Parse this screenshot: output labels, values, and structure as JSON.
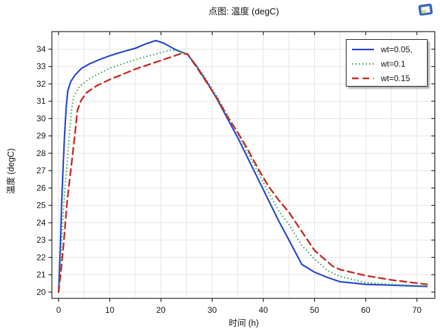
{
  "header": {
    "title": "点图: 温度 (degC)",
    "corner_icon": "plot-window-icon"
  },
  "chart_data": {
    "type": "line",
    "title": "点图: 温度 (degC)",
    "xlabel": "时间 (h)",
    "ylabel": "温度 (degC)",
    "xlim": [
      -1.3,
      73.5
    ],
    "ylim": [
      19.64,
      35.01
    ],
    "xticks": [
      0,
      10,
      20,
      30,
      40,
      50,
      60,
      70
    ],
    "yticks": [
      20,
      21,
      22,
      23,
      24,
      25,
      26,
      27,
      28,
      29,
      30,
      31,
      32,
      33,
      34
    ],
    "x_grid_step": 5,
    "grid": true,
    "grid_color": "#e4e4e4",
    "frame_color": "#222222",
    "legend": {
      "position": "top-right",
      "border": true
    },
    "series": [
      {
        "name": "wt=0.05,",
        "color": "#2346cc",
        "line_style": "solid",
        "line_width": 2.2,
        "x": [
          0,
          0.3,
          0.6,
          0.9,
          1.2,
          1.5,
          1.8,
          2.4,
          3.2,
          4.5,
          6,
          8,
          10,
          12.5,
          15,
          17,
          19,
          20.5,
          23,
          25.2,
          27,
          29,
          31,
          33,
          35,
          37,
          39,
          41,
          43,
          45,
          47.5,
          50,
          52.5,
          55,
          60,
          65,
          70,
          72
        ],
        "y": [
          20,
          22.2,
          25.0,
          27.3,
          29.2,
          30.7,
          31.6,
          32.15,
          32.5,
          32.9,
          33.15,
          33.4,
          33.62,
          33.85,
          34.05,
          34.3,
          34.5,
          34.35,
          33.95,
          33.7,
          33.0,
          32.1,
          31.1,
          30.0,
          28.9,
          27.7,
          26.5,
          25.3,
          24.1,
          23.0,
          21.6,
          21.15,
          20.85,
          20.6,
          20.45,
          20.4,
          20.35,
          20.33
        ]
      },
      {
        "name": "wt=0.1",
        "color": "#35a052",
        "line_style": "dotted",
        "line_width": 2.1,
        "x": [
          0,
          0.4,
          0.8,
          1.2,
          1.7,
          2.1,
          2.6,
          3.0,
          4.1,
          6,
          8,
          10,
          12.5,
          15,
          17.5,
          20,
          22,
          23.5,
          25.2,
          27,
          29,
          31,
          33,
          35,
          37,
          39,
          41,
          43,
          45,
          47.5,
          50,
          52.5,
          55,
          60,
          65,
          70,
          72
        ],
        "y": [
          20,
          21.8,
          24.0,
          25.8,
          27.5,
          29.1,
          30.65,
          31.3,
          31.85,
          32.3,
          32.6,
          32.9,
          33.15,
          33.4,
          33.6,
          33.8,
          33.95,
          33.9,
          33.7,
          33.05,
          32.2,
          31.25,
          30.2,
          29.15,
          28.0,
          26.9,
          25.75,
          24.7,
          23.9,
          22.7,
          21.9,
          21.25,
          20.9,
          20.55,
          20.45,
          20.37,
          20.35
        ]
      },
      {
        "name": "wt=0.15",
        "color": "#c42a21",
        "line_style": "dashed",
        "line_width": 2.4,
        "x": [
          0,
          0.5,
          1.0,
          1.6,
          2.1,
          2.5,
          3.2,
          3.7,
          4.4,
          5.5,
          7.5,
          10,
          12.5,
          15,
          17.5,
          20,
          22.5,
          24,
          25.2,
          27,
          29,
          31,
          33,
          35,
          37,
          39,
          41,
          43,
          45,
          47.5,
          50,
          53.5,
          55,
          60,
          65,
          70,
          72
        ],
        "y": [
          20,
          21.3,
          22.8,
          25.0,
          26.3,
          27.3,
          29.1,
          30.5,
          31.05,
          31.5,
          31.9,
          32.25,
          32.55,
          32.85,
          33.1,
          33.35,
          33.6,
          33.75,
          33.72,
          32.95,
          32.05,
          31.15,
          30.1,
          29.2,
          28.2,
          27.1,
          26.1,
          25.3,
          24.6,
          23.5,
          22.4,
          21.5,
          21.3,
          20.95,
          20.7,
          20.52,
          20.45
        ]
      }
    ]
  }
}
